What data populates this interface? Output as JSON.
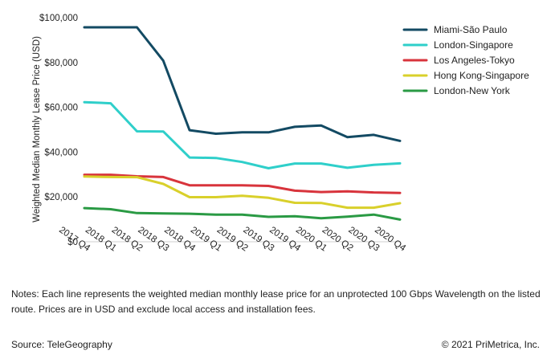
{
  "chart_data": {
    "type": "line",
    "title": "",
    "xlabel": "",
    "ylabel": "Weighted Median Monthly Lease Price (USD)",
    "ylim": [
      0,
      100000
    ],
    "yticks": [
      0,
      20000,
      40000,
      60000,
      80000,
      100000
    ],
    "ytick_labels": [
      "$0",
      "$20,000",
      "$40,000",
      "$60,000",
      "$80,000",
      "$100,000"
    ],
    "grid": false,
    "legend_position": "top-right",
    "categories": [
      "2017 Q4",
      "2018 Q1",
      "2018 Q2",
      "2018 Q3",
      "2018 Q4",
      "2019 Q1",
      "2019 Q2",
      "2019 Q3",
      "2019 Q4",
      "2020 Q1",
      "2020 Q2",
      "2020 Q3",
      "2020 Q4"
    ],
    "series": [
      {
        "name": "Miami-São Paulo",
        "color": "#134a63",
        "values": [
          95700,
          95700,
          95700,
          80800,
          49800,
          48200,
          48800,
          48800,
          51300,
          51900,
          46700,
          47700,
          45000
        ]
      },
      {
        "name": "London-Singapore",
        "color": "#2fcfca",
        "values": [
          62300,
          61800,
          49300,
          49200,
          37600,
          37400,
          35600,
          32800,
          34900,
          34900,
          33000,
          34300,
          35000
        ]
      },
      {
        "name": "Los Angeles-Tokyo",
        "color": "#d8343c",
        "values": [
          29900,
          29900,
          29200,
          28900,
          25200,
          25200,
          25200,
          24900,
          22800,
          22200,
          22500,
          22000,
          21800
        ]
      },
      {
        "name": "Hong Kong-Singapore",
        "color": "#d9d02b",
        "values": [
          29100,
          28900,
          28800,
          25800,
          19900,
          19900,
          20500,
          19600,
          17400,
          17300,
          15200,
          15200,
          17200
        ]
      },
      {
        "name": "London-New York",
        "color": "#2a9a44",
        "values": [
          15000,
          14500,
          12800,
          12600,
          12500,
          12100,
          12100,
          11100,
          11400,
          10500,
          11200,
          12100,
          9900
        ]
      }
    ]
  },
  "notes": "Notes: Each line represents the weighted median monthly lease price for an unprotected 100 Gbps Wavelength on the listed route. Prices are in USD and exclude local access and installation fees.",
  "source": "Source: TeleGeography",
  "copyright": "© 2021 PriMetrica, Inc."
}
